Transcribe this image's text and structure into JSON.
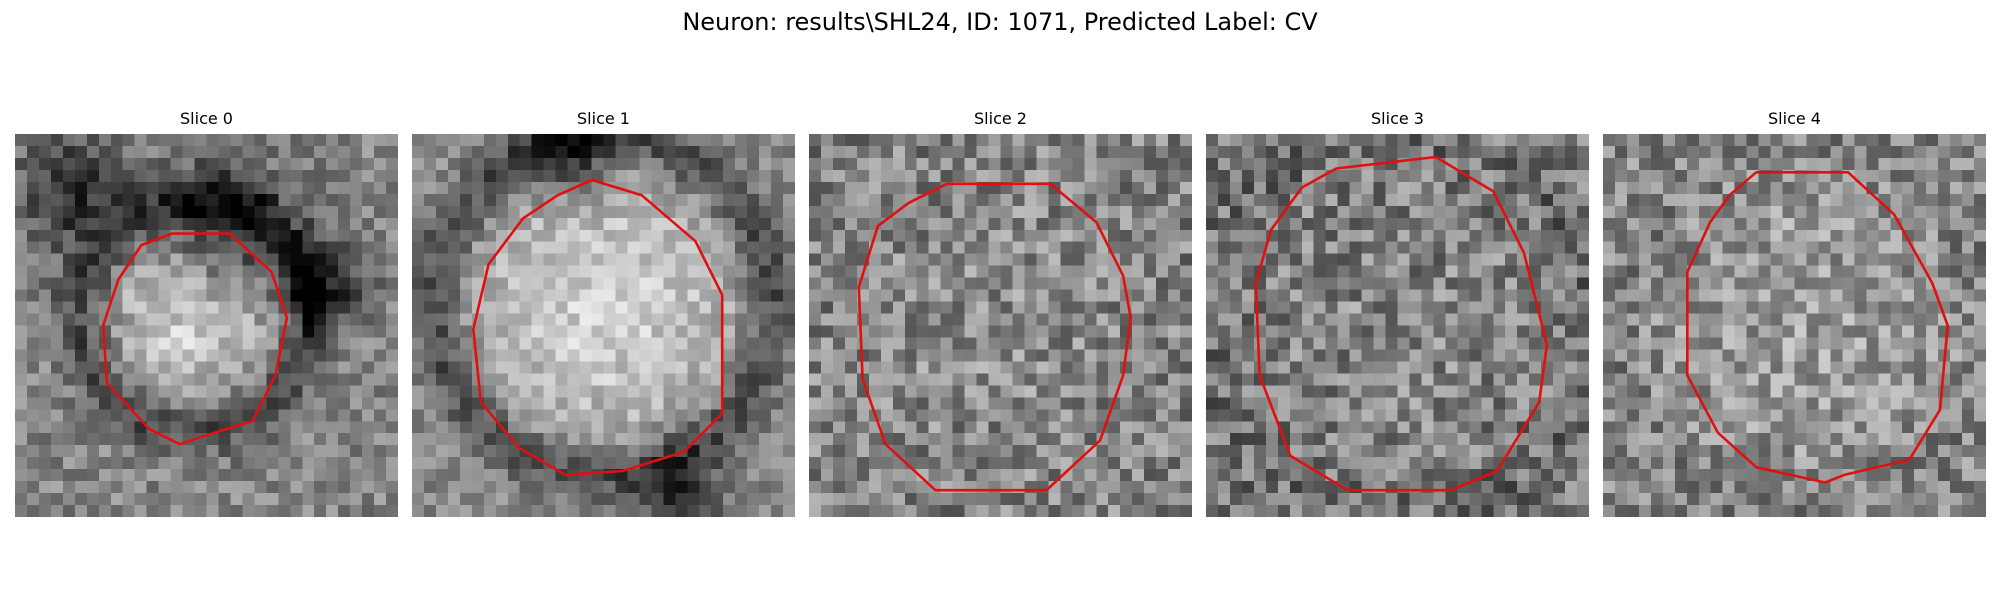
{
  "figure": {
    "title": "Neuron: results\\SHL24, ID: 1071, Predicted Label: CV"
  },
  "outline_color": "#e01010",
  "panels": [
    {
      "title": "Slice 0"
    },
    {
      "title": "Slice 1"
    },
    {
      "title": "Slice 2"
    },
    {
      "title": "Slice 3"
    },
    {
      "title": "Slice 4"
    }
  ]
}
